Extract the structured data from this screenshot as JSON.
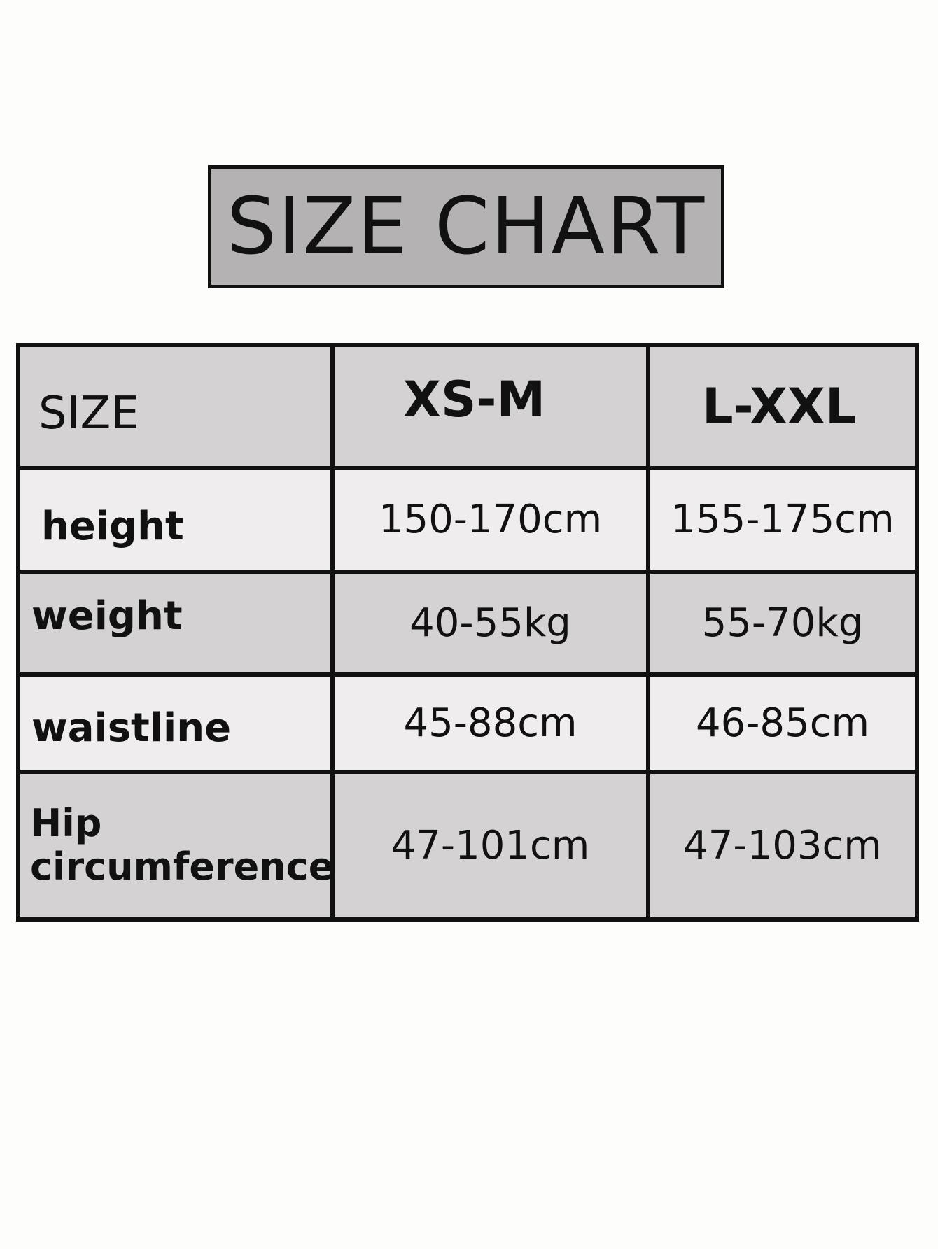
{
  "title": "SIZE CHART",
  "table": {
    "header": [
      "SIZE",
      "XS-M",
      "L-XXL"
    ],
    "rows": [
      {
        "label": "height",
        "values": [
          "150-170cm",
          "155-175cm"
        ]
      },
      {
        "label": "weight",
        "values": [
          "40-55kg",
          "55-70kg"
        ]
      },
      {
        "label": "waistline",
        "values": [
          "45-88cm",
          "46-85cm"
        ]
      },
      {
        "label_line1": "Hip",
        "label_line2": "circumference",
        "values": [
          "47-101cm",
          "47-103cm"
        ]
      }
    ]
  },
  "colors": {
    "header_bg": "#d4d2d3",
    "light_row_bg": "#efeded",
    "title_bg": "#b4b2b3",
    "border": "#111111"
  }
}
